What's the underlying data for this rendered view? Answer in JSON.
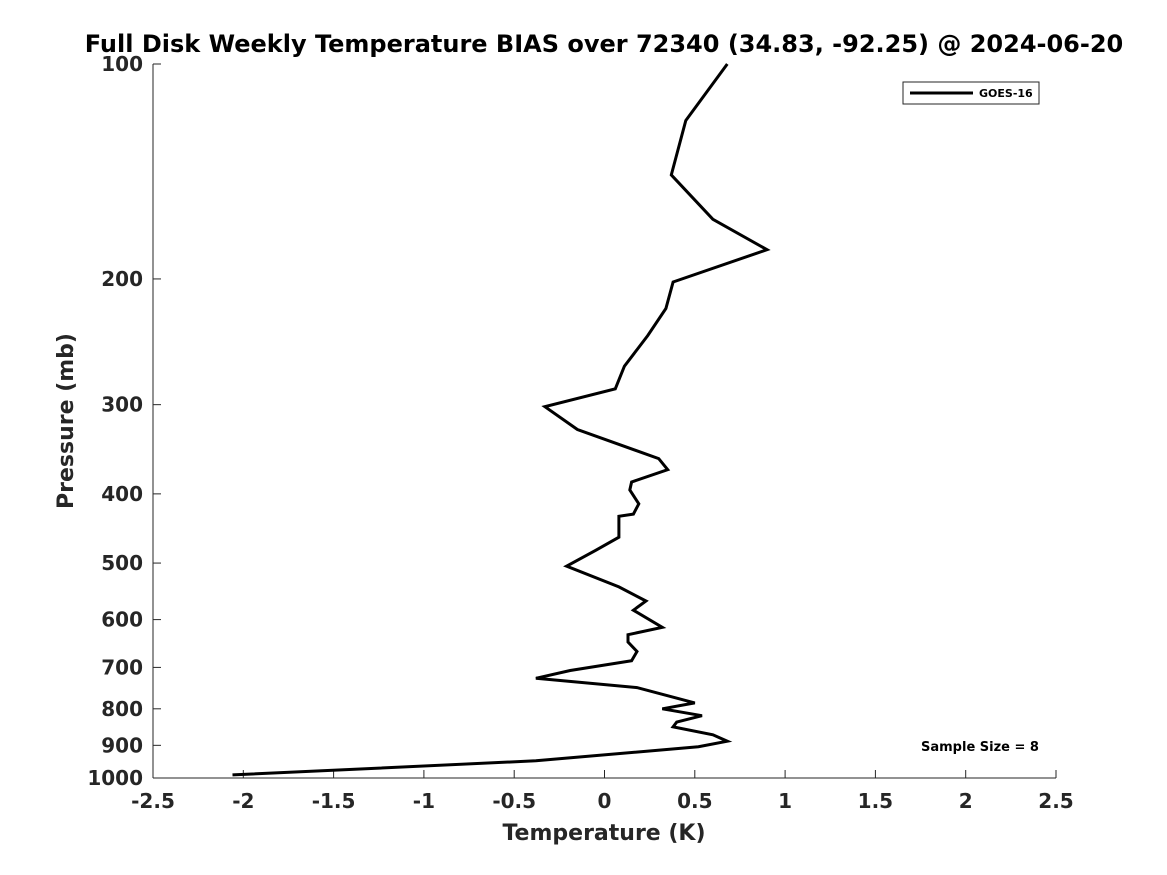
{
  "chart_data": {
    "type": "line",
    "title": "Full Disk Weekly Temperature BIAS over 72340 (34.83, -92.25) @ 2024-06-20",
    "xlabel": "Temperature (K)",
    "ylabel": "Pressure (mb)",
    "xlim": [
      -2.5,
      2.5
    ],
    "ylim": [
      100,
      1000
    ],
    "y_scale": "log",
    "y_reversed": true,
    "grid": false,
    "legend_position": "top-right",
    "x_ticks": [
      "-2.5",
      "-2",
      "-1.5",
      "-1",
      "-0.5",
      "0",
      "0.5",
      "1",
      "1.5",
      "2",
      "2.5"
    ],
    "y_ticks": [
      "100",
      "200",
      "300",
      "400",
      "500",
      "600",
      "700",
      "800",
      "900",
      "1000"
    ],
    "series": [
      {
        "name": "GOES-16",
        "color": "#000000",
        "x": [
          0.68,
          0.45,
          0.37,
          0.6,
          0.9,
          0.38,
          0.34,
          0.24,
          0.11,
          0.06,
          -0.33,
          -0.15,
          0.3,
          0.35,
          0.15,
          0.14,
          0.19,
          0.16,
          0.08,
          0.08,
          -0.05,
          -0.21,
          0.08,
          0.23,
          0.16,
          0.32,
          0.13,
          0.13,
          0.18,
          0.15,
          -0.19,
          -0.38,
          0.18,
          0.5,
          0.32,
          0.54,
          0.4,
          0.38,
          0.6,
          0.68,
          0.52,
          -0.38,
          -2.06
        ],
        "y": [
          100,
          120,
          143,
          165,
          182,
          202,
          220,
          240,
          265,
          285,
          302,
          325,
          357,
          370,
          385,
          395,
          413,
          427,
          430,
          460,
          480,
          505,
          540,
          565,
          582,
          615,
          630,
          645,
          665,
          685,
          707,
          725,
          747,
          785,
          800,
          818,
          835,
          848,
          870,
          888,
          904,
          946,
          990
        ]
      }
    ],
    "annotations": [
      "Sample Size = 8"
    ]
  }
}
